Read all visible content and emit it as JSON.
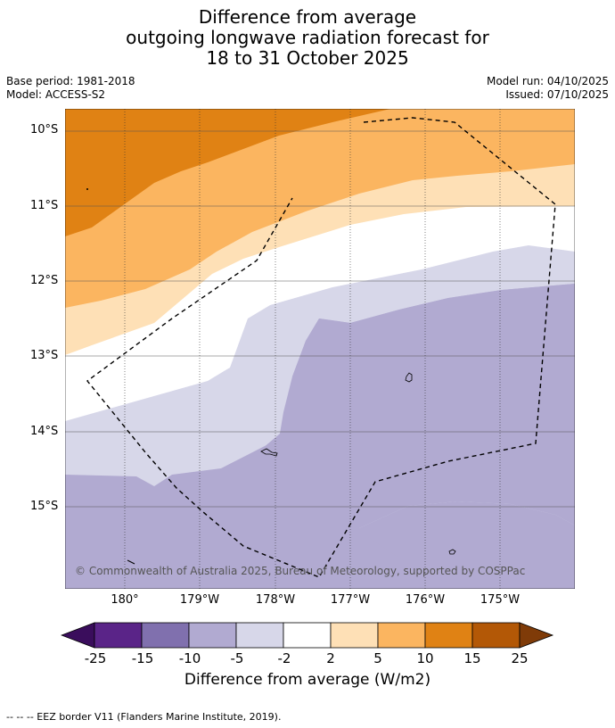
{
  "title": {
    "line1": "Difference from average",
    "line2": "outgoing longwave radiation forecast for",
    "line3": "18 to 31 October 2025"
  },
  "meta": {
    "base_period": "Base period: 1981-2018",
    "model": "Model: ACCESS-S2",
    "model_run": "Model run: 04/10/2025",
    "issued": "Issued: 07/10/2025"
  },
  "axes": {
    "lat_labels": [
      "10°S",
      "11°S",
      "12°S",
      "13°S",
      "14°S",
      "15°S"
    ],
    "lon_labels": [
      "180°",
      "179°W",
      "178°W",
      "177°W",
      "176°W",
      "175°W"
    ]
  },
  "copyright": "© Commonwealth of Australia 2025, Bureau of Meteorology, supported by COSPPac",
  "colorbar": {
    "ticks": [
      "-25",
      "-15",
      "-10",
      "-5",
      "-2",
      "2",
      "5",
      "10",
      "15",
      "25"
    ],
    "colors": [
      "#3a0d5c",
      "#5a2488",
      "#8070ae",
      "#b1aad1",
      "#d7d7e9",
      "#ffffff",
      "#fee0b6",
      "#fbb560",
      "#e08214",
      "#b35806",
      "#7f3b08"
    ],
    "title": "Difference from average (W/m2)"
  },
  "footnote": "--  --  -- EEZ border V11 (Flanders Marine Institute, 2019)."
}
